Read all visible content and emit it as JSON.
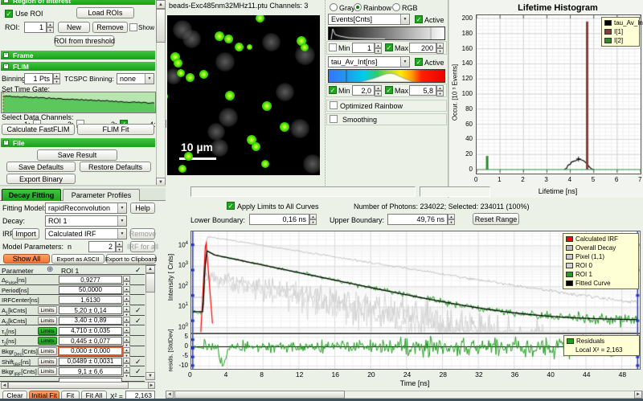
{
  "icons": {
    "up": "▲",
    "down": "▼",
    "left": "◄",
    "right": "►",
    "check": "✓",
    "globe": "⊕",
    "dropdown": "▼",
    "collapse": "-"
  },
  "left_panel": {
    "roi": {
      "title": "Region of Interest",
      "use_roi": "Use ROI",
      "use_roi_checked": true,
      "load_rois": "Load ROIs",
      "roi_label": "ROI:",
      "roi_value": "1",
      "new_btn": "New",
      "remove_btn": "Remove",
      "show_all": "Show All",
      "show_all_checked": false,
      "threshold_btn": "ROI from threshold"
    },
    "frame": {
      "title": "Frame"
    },
    "flim": {
      "title": "FLIM",
      "binning_label": "Binning:",
      "binning_value": "1 Pts",
      "tcspc_label": "TCSPC Binning:",
      "tcspc_value": "none",
      "time_gate_label": "Set Time Gate:",
      "channels_label": "Select Data Channels:",
      "channels": [
        {
          "label": "1:",
          "checked": false
        },
        {
          "label": "2:",
          "checked": false
        },
        {
          "label": "3:",
          "checked": true
        },
        {
          "label": "4:",
          "checked": false
        }
      ],
      "calc_btn": "Calculate FastFLIM",
      "fit_btn": "FLIM Fit"
    },
    "file": {
      "title": "File",
      "save_result": "Save Result",
      "save_defaults": "Save Defaults",
      "restore_defaults": "Restore Defaults",
      "export_binary": "Export Binary"
    }
  },
  "fitting": {
    "tabs": [
      {
        "label": "Decay Fitting",
        "active": true
      },
      {
        "label": "Parameter Profiles",
        "active": false
      }
    ],
    "model_label": "Fitting Model:",
    "model_value": "rapidReconvolution",
    "help_btn": "Help",
    "decay_label": "Decay:",
    "decay_value": "ROI 1",
    "irf_label": "IRF:",
    "import_btn": "Import",
    "irf_value": "Calculated IRF",
    "remove_btn": "Remove",
    "params_label": "Model Parameters:",
    "params_n": "n",
    "params_value": "2",
    "irf_all_btn": "IRF for all",
    "show_all_btn": "Show All",
    "export_ascii_btn": "Export as ASCII",
    "export_clip_btn": "Export to Clipboard",
    "table": {
      "param_header": "Parameter",
      "roi_header": "ROI 1",
      "limits_label": "Limits",
      "rows": [
        {
          "base": "Δ",
          "sub": "Pulse",
          "unit": "[ns]",
          "value": "0,9277",
          "limits": null,
          "checked": false,
          "highlight": false
        },
        {
          "base": "Period",
          "sub": "",
          "unit": "[ns]",
          "value": "50,0000",
          "limits": null,
          "checked": false,
          "highlight": false
        },
        {
          "base": "IRFCenter",
          "sub": "",
          "unit": "[ns]",
          "value": "1,6130",
          "limits": null,
          "checked": false,
          "highlight": false
        },
        {
          "base": "A",
          "sub": "1",
          "unit": "[kCnts]",
          "value": "5,20 ± 0,14",
          "limits": "normal",
          "checked": true,
          "highlight": false
        },
        {
          "base": "A",
          "sub": "2",
          "unit": "[kCnts]",
          "value": "3,40 ± 0,89",
          "limits": "normal",
          "checked": true,
          "highlight": false
        },
        {
          "base": "τ",
          "sub": "1",
          "unit": "[ns]",
          "value": "4,710 ± 0,035",
          "limits": "green",
          "checked": false,
          "highlight": false
        },
        {
          "base": "τ",
          "sub": "2",
          "unit": "[ns]",
          "value": "0,445 ± 0,077",
          "limits": "green",
          "checked": false,
          "highlight": false
        },
        {
          "base": "Bkgr",
          "sub": "Dec",
          "unit": "[Cnts]",
          "value": "0,000 ± 0,000",
          "limits": "normal",
          "checked": false,
          "highlight": true
        },
        {
          "base": "Shift",
          "sub": "IRF",
          "unit": "[ns]",
          "value": "0,0489 ± 0,0031",
          "limits": "normal",
          "checked": true,
          "highlight": false
        },
        {
          "base": "Bkgr",
          "sub": "IRF",
          "unit": "[Cnts]",
          "value": "9,1 ± 6,6",
          "limits": "normal",
          "checked": true,
          "highlight": false
        }
      ]
    },
    "footer": {
      "clear": "Clear",
      "initial_fit": "Initial Fit",
      "fit": "Fit",
      "fit_all": "Fit All",
      "chi2_label": "X² =",
      "chi2_value": "2,163"
    }
  },
  "image_panel": {
    "title": "beads-Exc485nm32MHz11.ptu Channels: 3",
    "scale_bar": "10 µm",
    "beads": [
      [
        61,
        2,
        11
      ],
      [
        34,
        13,
        12
      ],
      [
        40,
        15,
        11
      ],
      [
        47,
        20,
        11
      ],
      [
        54,
        20,
        7
      ],
      [
        88,
        16,
        12
      ],
      [
        90,
        20,
        10
      ],
      [
        5,
        26,
        12
      ],
      [
        7,
        30,
        11
      ],
      [
        9,
        36,
        10
      ],
      [
        15,
        39,
        11
      ],
      [
        24,
        37,
        11
      ],
      [
        41,
        50,
        12
      ],
      [
        -2,
        51,
        10
      ],
      [
        65,
        57,
        12
      ],
      [
        77,
        70,
        12
      ],
      [
        55,
        78,
        12
      ],
      [
        58,
        82,
        11
      ],
      [
        14,
        88,
        11
      ],
      [
        10,
        96,
        10
      ],
      [
        64,
        93,
        10
      ]
    ],
    "blobs": [
      [
        10,
        9,
        24
      ],
      [
        16,
        15,
        23
      ],
      [
        38,
        29,
        24
      ],
      [
        68,
        17,
        23
      ],
      [
        90,
        25,
        25
      ],
      [
        4,
        38,
        20
      ],
      [
        77,
        48,
        23
      ],
      [
        40,
        64,
        24
      ],
      [
        32,
        73,
        22
      ],
      [
        87,
        71,
        24
      ],
      [
        34,
        83,
        22
      ],
      [
        95,
        93,
        24
      ]
    ]
  },
  "display": {
    "radios": [
      {
        "label": "Gray",
        "selected": false
      },
      {
        "label": "Rainbow",
        "selected": true
      },
      {
        "label": "RGB",
        "selected": false
      }
    ],
    "ch1": {
      "name": "Events[Cnts]",
      "active_label": "Active",
      "active": true,
      "min_label": "Min",
      "min_checked": false,
      "min_value": "1",
      "max_label": "Max",
      "max_checked": true,
      "max_value": "200"
    },
    "ch2": {
      "name": "tau_Av_Int[ns]",
      "active_label": "Active",
      "active": true,
      "min_label": "Min",
      "min_checked": true,
      "min_value": "2,0",
      "max_label": "Max",
      "max_checked": true,
      "max_value": "5,8"
    },
    "optimized_rainbow": {
      "label": "Optimized Rainbow",
      "checked": false
    },
    "smoothing": {
      "label": "Smoothing",
      "checked": false
    }
  },
  "decay_toolbar": {
    "apply_limits": "Apply Limits to All Curves",
    "apply_checked": true,
    "photons": "Number of Photons: 234022; Selected: 234011 (100%)",
    "lower_label": "Lower Boundary:",
    "lower_value": "0,16 ns",
    "upper_label": "Upper Boundary:",
    "upper_value": "49,76 ns",
    "reset_btn": "Reset Range"
  },
  "chart_data": [
    {
      "id": "lifetime_histogram",
      "type": "line",
      "title": "Lifetime Histogram",
      "xlabel": "Lifetime [ns]",
      "ylabel": "Occur. [10 ³ Events]",
      "xlim": [
        0,
        7
      ],
      "ylim": [
        0,
        200
      ],
      "xticks": [
        0,
        1,
        2,
        3,
        4,
        5,
        6,
        7
      ],
      "yticks": [
        0,
        20,
        40,
        60,
        80,
        100,
        120,
        140,
        160,
        180,
        200
      ],
      "legend": [
        {
          "label": "tau_Av_Int",
          "color": "#000000"
        },
        {
          "label": "I[1]",
          "color": "#8b3a3a"
        },
        {
          "label": "I[2]",
          "color": "#2e8b2e"
        }
      ],
      "series": [
        {
          "name": "tau_Av_Int",
          "color": "#000000",
          "type": "curve",
          "points": [
            [
              3.75,
              0
            ],
            [
              3.85,
              2
            ],
            [
              3.9,
              6
            ],
            [
              4.0,
              7
            ],
            [
              4.05,
              10
            ],
            [
              4.15,
              11
            ],
            [
              4.25,
              12
            ],
            [
              4.35,
              14
            ],
            [
              4.45,
              13
            ],
            [
              4.55,
              12
            ],
            [
              4.6,
              11
            ],
            [
              4.7,
              8
            ],
            [
              4.8,
              4
            ],
            [
              4.9,
              1
            ],
            [
              5.0,
              0
            ]
          ],
          "marker": [
            4.35,
            14
          ]
        },
        {
          "name": "I[1]",
          "color": "#8b3a3a",
          "type": "vline",
          "x": 4.72,
          "height": 196
        },
        {
          "name": "I[2]",
          "color": "#2e8b2e",
          "type": "vline",
          "x": 0.45,
          "height": 18
        }
      ]
    },
    {
      "id": "decay",
      "type": "line",
      "xlabel": "Time [ns]",
      "ylabel": "Intensity [ Cnts]",
      "resid_ylabel": "resids. [StdDev]",
      "xlim": [
        0,
        50
      ],
      "xticks": [
        0,
        4,
        8,
        12,
        16,
        20,
        24,
        28,
        32,
        36,
        40,
        44,
        48
      ],
      "ylog_exponents": [
        0,
        1,
        2,
        3,
        4
      ],
      "resid_yticks": [
        5,
        0,
        -5,
        -10
      ],
      "lower_boundary_ns": 0.16,
      "upper_boundary_ns": 49.76,
      "legend": [
        {
          "label": "Calculated IRF",
          "color": "#ff0000"
        },
        {
          "label": "Overall Decay",
          "color": "#b8b8b8"
        },
        {
          "label": "Pixel (1,1)",
          "color": "#c8c8c8"
        },
        {
          "label": "ROI 0",
          "color": "#d4d4d4"
        },
        {
          "label": "ROI 1",
          "color": "#1e9e1e"
        },
        {
          "label": "Fitted Curve",
          "color": "#000000"
        }
      ],
      "residuals_legend": {
        "label": "Residuals",
        "color": "#1e9e1e",
        "chi2": "Local X² = 2,163"
      },
      "fit_params": {
        "irf_center_ns": 1.613,
        "tau1_ns": 4.71,
        "tau2_ns": 0.445,
        "peak_counts": 5600,
        "background_counts": 6,
        "boundary_color": "#2233cc"
      }
    }
  ]
}
